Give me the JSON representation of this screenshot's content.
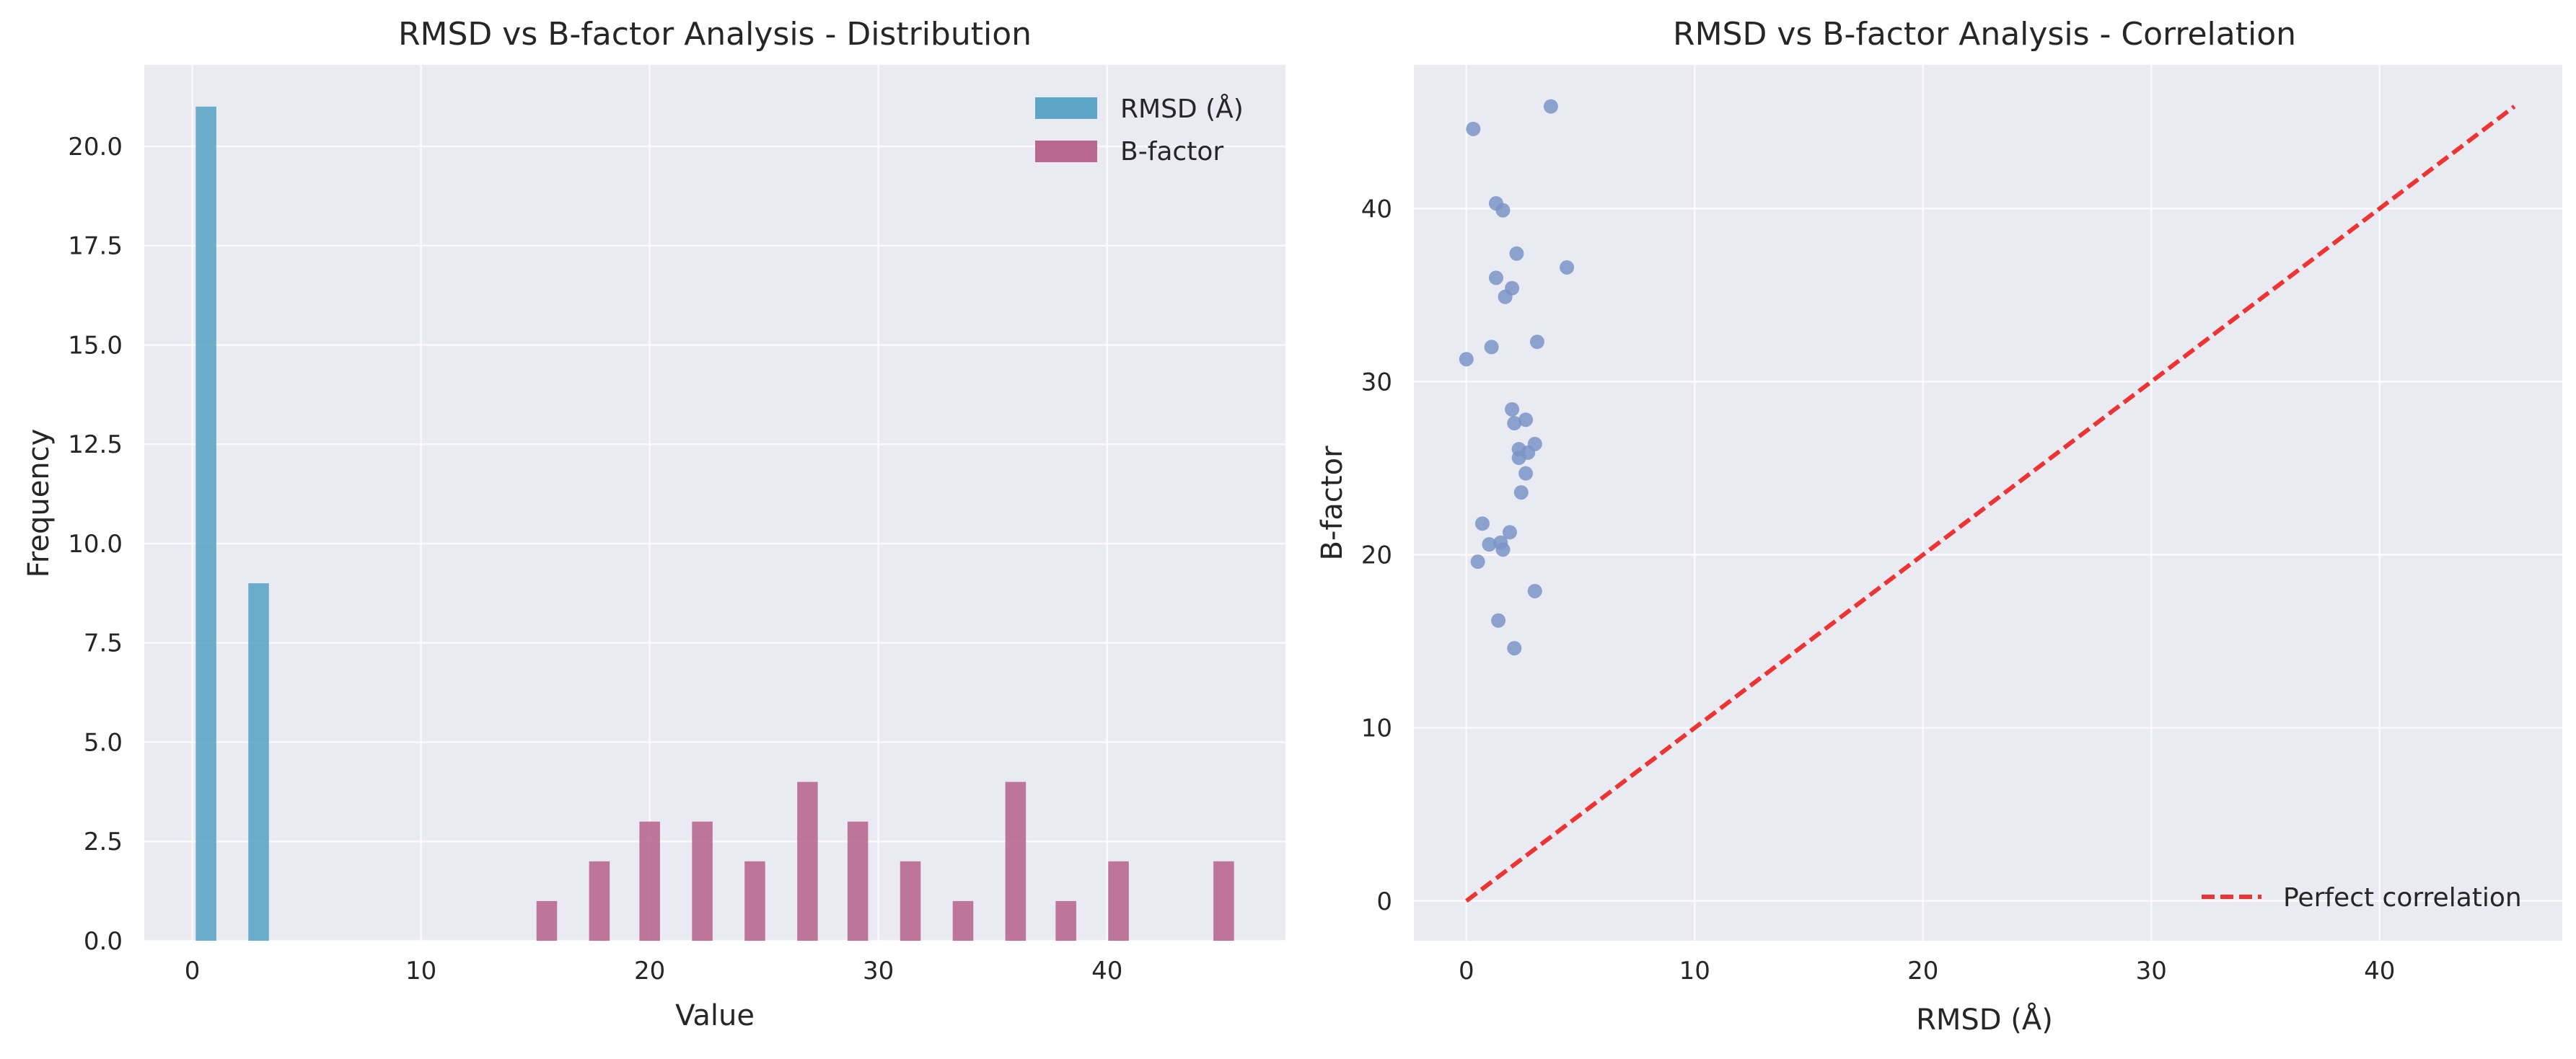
{
  "chart_data": [
    {
      "type": "bar",
      "title": "RMSD vs B-factor Analysis - Distribution",
      "xlabel": "Value",
      "ylabel": "Frequency",
      "xlim": [
        -2.1,
        47.8
      ],
      "ylim": [
        0,
        22.05
      ],
      "xticks": [
        0,
        10,
        20,
        30,
        40
      ],
      "yticks": [
        0.0,
        2.5,
        5.0,
        7.5,
        10.0,
        12.5,
        15.0,
        17.5,
        20.0
      ],
      "grid": true,
      "legend_position": "upper right",
      "bar_width": 0.9,
      "series": [
        {
          "name": "RMSD (Å)",
          "color": "#5da5c6",
          "points": [
            {
              "x": 0.6,
              "y": 21
            },
            {
              "x": 2.9,
              "y": 9
            }
          ]
        },
        {
          "name": "B-factor",
          "color": "#b8688f",
          "points": [
            {
              "x": 15.5,
              "y": 1
            },
            {
              "x": 17.8,
              "y": 2
            },
            {
              "x": 20.0,
              "y": 3
            },
            {
              "x": 22.3,
              "y": 3
            },
            {
              "x": 24.6,
              "y": 2
            },
            {
              "x": 26.9,
              "y": 4
            },
            {
              "x": 29.1,
              "y": 3
            },
            {
              "x": 31.4,
              "y": 2
            },
            {
              "x": 33.7,
              "y": 1
            },
            {
              "x": 36.0,
              "y": 4
            },
            {
              "x": 38.2,
              "y": 1
            },
            {
              "x": 40.5,
              "y": 2
            },
            {
              "x": 45.1,
              "y": 2
            }
          ]
        }
      ]
    },
    {
      "type": "scatter",
      "title": "RMSD vs B-factor Analysis - Correlation",
      "xlabel": "RMSD (Å)",
      "ylabel": "B-factor",
      "xlim": [
        -2.3,
        48.0
      ],
      "ylim": [
        -2.3,
        48.3
      ],
      "xticks": [
        0,
        10,
        20,
        30,
        40
      ],
      "yticks": [
        0,
        10,
        20,
        30,
        40
      ],
      "grid": true,
      "legend_position": "lower right",
      "series": [
        {
          "name": "",
          "color": "#7a94c8",
          "points": [
            [
              0.3,
              44.6
            ],
            [
              3.7,
              45.9
            ],
            [
              1.3,
              40.3
            ],
            [
              1.6,
              39.9
            ],
            [
              2.2,
              37.4
            ],
            [
              4.4,
              36.6
            ],
            [
              1.3,
              36.0
            ],
            [
              2.0,
              35.4
            ],
            [
              1.7,
              34.9
            ],
            [
              3.1,
              32.3
            ],
            [
              1.1,
              32.0
            ],
            [
              0.0,
              31.3
            ],
            [
              2.0,
              28.4
            ],
            [
              2.6,
              27.8
            ],
            [
              2.1,
              27.6
            ],
            [
              3.0,
              26.4
            ],
            [
              2.3,
              26.1
            ],
            [
              2.7,
              25.9
            ],
            [
              2.3,
              25.6
            ],
            [
              2.6,
              24.7
            ],
            [
              2.4,
              23.6
            ],
            [
              0.7,
              21.8
            ],
            [
              1.9,
              21.3
            ],
            [
              1.5,
              20.7
            ],
            [
              1.0,
              20.6
            ],
            [
              1.6,
              20.3
            ],
            [
              0.5,
              19.6
            ],
            [
              3.0,
              17.9
            ],
            [
              1.4,
              16.2
            ],
            [
              2.1,
              14.6
            ]
          ]
        },
        {
          "name": "Perfect correlation",
          "type": "line",
          "style": "dashed",
          "color": "#ee3333",
          "points": [
            [
              0,
              0
            ],
            [
              45.9,
              45.9
            ]
          ]
        }
      ]
    }
  ]
}
